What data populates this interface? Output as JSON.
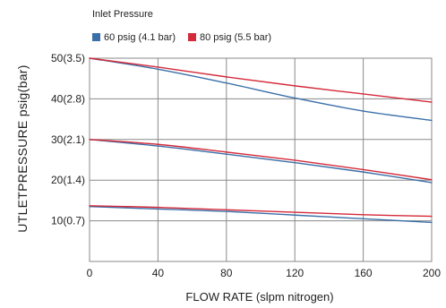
{
  "chart_data": {
    "type": "line",
    "legend_title": "Inlet Pressure",
    "legend_placement": "top-left",
    "xlabel": "FLOW RATE (slpm nitrogen)",
    "ylabel": "UTLETPRESSURE psig(bar)",
    "xlim": [
      0,
      200
    ],
    "ylim": [
      0,
      50
    ],
    "grid": true,
    "x_ticks": [
      {
        "value": 0,
        "label": "0"
      },
      {
        "value": 40,
        "label": "40"
      },
      {
        "value": 80,
        "label": "80"
      },
      {
        "value": 120,
        "label": "120"
      },
      {
        "value": 160,
        "label": "160"
      },
      {
        "value": 200,
        "label": "200"
      }
    ],
    "y_ticks": [
      {
        "value": 10,
        "label": "10(0.7)"
      },
      {
        "value": 20,
        "label": "20(1.4)"
      },
      {
        "value": 30,
        "label": "30(2.1)"
      },
      {
        "value": 40,
        "label": "40(2.8)"
      },
      {
        "value": 50,
        "label": "50(3.5)"
      }
    ],
    "series": [
      {
        "name": "60 psig (4.1 bar)",
        "color": "#3a6fa8",
        "curves": [
          {
            "x": [
              0,
              40,
              80,
              120,
              160,
              200
            ],
            "y": [
              50,
              47.3,
              43.9,
              40.2,
              37,
              34.7
            ]
          },
          {
            "x": [
              0,
              40,
              80,
              120,
              160,
              200
            ],
            "y": [
              30,
              28.4,
              26.4,
              24.3,
              22,
              19.4
            ]
          },
          {
            "x": [
              0,
              40,
              80,
              120,
              160,
              200
            ],
            "y": [
              13.5,
              12.9,
              12.3,
              11.4,
              10.5,
              9.6
            ]
          }
        ]
      },
      {
        "name": "80 psig (5.5 bar)",
        "color": "#d42a3a",
        "curves": [
          {
            "x": [
              0,
              40,
              80,
              120,
              160,
              200
            ],
            "y": [
              50,
              47.8,
              45.4,
              43.2,
              41.2,
              39.2
            ]
          },
          {
            "x": [
              0,
              40,
              80,
              120,
              160,
              200
            ],
            "y": [
              30,
              28.8,
              26.9,
              24.9,
              22.6,
              20.1
            ]
          },
          {
            "x": [
              0,
              40,
              80,
              120,
              160,
              200
            ],
            "y": [
              13.7,
              13.3,
              12.7,
              12.1,
              11.5,
              11.1
            ]
          }
        ]
      }
    ]
  }
}
